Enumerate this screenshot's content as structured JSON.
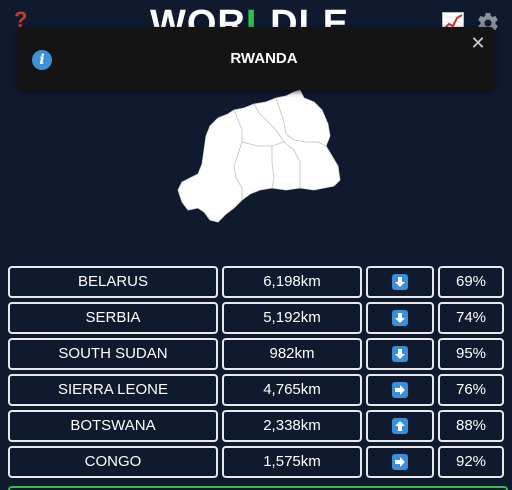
{
  "header": {
    "title_start": "WOR",
    "title_highlight": "L",
    "title_end": "DLE",
    "help_icon": "question-mark-icon",
    "stats_icon": "chart-icon",
    "settings_icon": "gear-icon"
  },
  "toast": {
    "icon": "info-icon",
    "message": "RWANDA",
    "close_icon": "close-icon"
  },
  "country": {
    "shape_icon": "country-silhouette"
  },
  "guesses": [
    {
      "country": "BELARUS",
      "distance": "6,198km",
      "direction": "down-arrow-icon",
      "proximity": "69%"
    },
    {
      "country": "SERBIA",
      "distance": "5,192km",
      "direction": "down-arrow-icon",
      "proximity": "74%"
    },
    {
      "country": "SOUTH SUDAN",
      "distance": "982km",
      "direction": "down-arrow-icon",
      "proximity": "95%"
    },
    {
      "country": "SIERRA LEONE",
      "distance": "4,765km",
      "direction": "right-arrow-icon",
      "proximity": "76%"
    },
    {
      "country": "BOTSWANA",
      "distance": "2,338km",
      "direction": "up-arrow-icon",
      "proximity": "88%"
    },
    {
      "country": "CONGO",
      "distance": "1,575km",
      "direction": "right-arrow-icon",
      "proximity": "92%"
    }
  ],
  "colors": {
    "background": "#0f1a2e",
    "accent_green": "#2fbf4a",
    "help_red": "#d0342c",
    "info_blue": "#3d91d6",
    "arrow_blue": "#3b8fd9"
  }
}
